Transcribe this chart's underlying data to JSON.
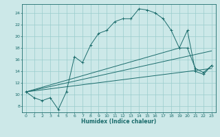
{
  "xlabel": "Humidex (Indice chaleur)",
  "bg_color": "#cce8e8",
  "grid_color": "#99cccc",
  "line_color": "#1a6b6b",
  "xlim": [
    -0.5,
    23.5
  ],
  "ylim": [
    7,
    25.5
  ],
  "xticks": [
    0,
    1,
    2,
    3,
    4,
    5,
    6,
    7,
    8,
    9,
    10,
    11,
    12,
    13,
    14,
    15,
    16,
    17,
    18,
    19,
    20,
    21,
    22,
    23
  ],
  "yticks": [
    8,
    10,
    12,
    14,
    16,
    18,
    20,
    22,
    24
  ],
  "curve1_x": [
    0,
    1,
    2,
    3,
    4,
    5,
    6,
    7,
    8,
    9,
    10,
    11,
    12,
    13,
    14,
    15,
    16,
    17,
    18,
    19,
    20,
    21,
    22,
    23
  ],
  "curve1_y": [
    10.5,
    9.5,
    9.0,
    9.5,
    7.5,
    10.5,
    16.5,
    15.5,
    18.5,
    20.5,
    21.0,
    22.5,
    23.0,
    23.0,
    24.7,
    24.5,
    24.0,
    23.0,
    21.0,
    18.0,
    21.0,
    14.0,
    13.5,
    15.0
  ],
  "curve2_x": [
    0,
    19,
    20,
    21,
    22,
    23
  ],
  "curve2_y": [
    10.5,
    18.0,
    18.0,
    14.5,
    13.8,
    15.0
  ],
  "curve3_x": [
    0,
    23
  ],
  "curve3_y": [
    10.5,
    17.5
  ],
  "curve4_x": [
    0,
    23
  ],
  "curve4_y": [
    10.5,
    14.5
  ]
}
